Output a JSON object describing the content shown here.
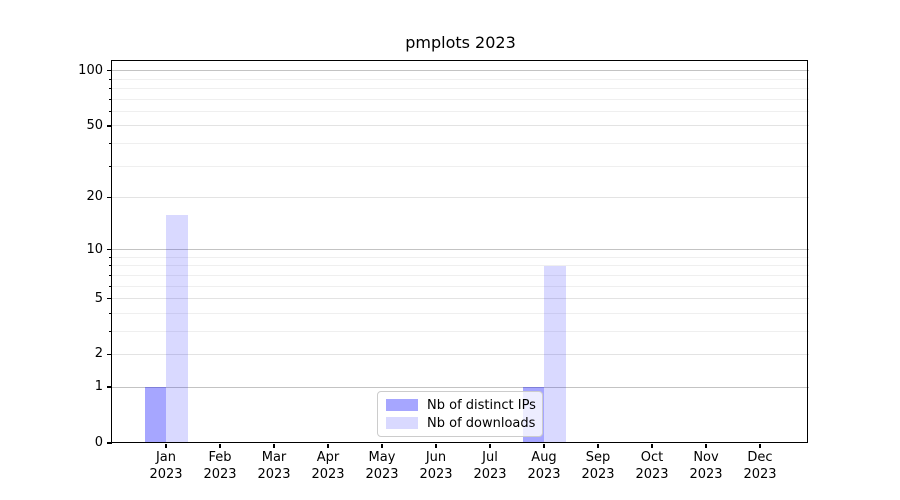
{
  "chart_data": {
    "type": "bar",
    "title": "pmplots 2023",
    "categories": [
      "Jan 2023",
      "Feb 2023",
      "Mar 2023",
      "Apr 2023",
      "May 2023",
      "Jun 2023",
      "Jul 2023",
      "Aug 2023",
      "Sep 2023",
      "Oct 2023",
      "Nov 2023",
      "Dec 2023"
    ],
    "series": [
      {
        "name": "Nb of distinct IPs",
        "color": "#a6a6ff",
        "css_color": "rgba(0,0,255,0.35)",
        "values": [
          1,
          0,
          0,
          0,
          0,
          0,
          0,
          1,
          0,
          0,
          0,
          0
        ]
      },
      {
        "name": "Nb of downloads",
        "color": "#d9d9ff",
        "css_color": "rgba(0,0,255,0.15)",
        "values": [
          16,
          0,
          0,
          0,
          0,
          0,
          0,
          8,
          0,
          0,
          0,
          0
        ]
      }
    ],
    "xlabel": "",
    "ylabel": "",
    "yscale": "log1p",
    "ylim": [
      0,
      113
    ],
    "yticks": [
      0,
      1,
      2,
      5,
      10,
      20,
      50,
      100
    ],
    "yticks_emphasized": [
      1,
      10,
      100
    ],
    "yticks_minor": [
      3,
      4,
      6,
      7,
      8,
      9,
      30,
      40,
      60,
      70,
      80,
      90
    ],
    "grid": "on",
    "legend_position": "lower center"
  }
}
